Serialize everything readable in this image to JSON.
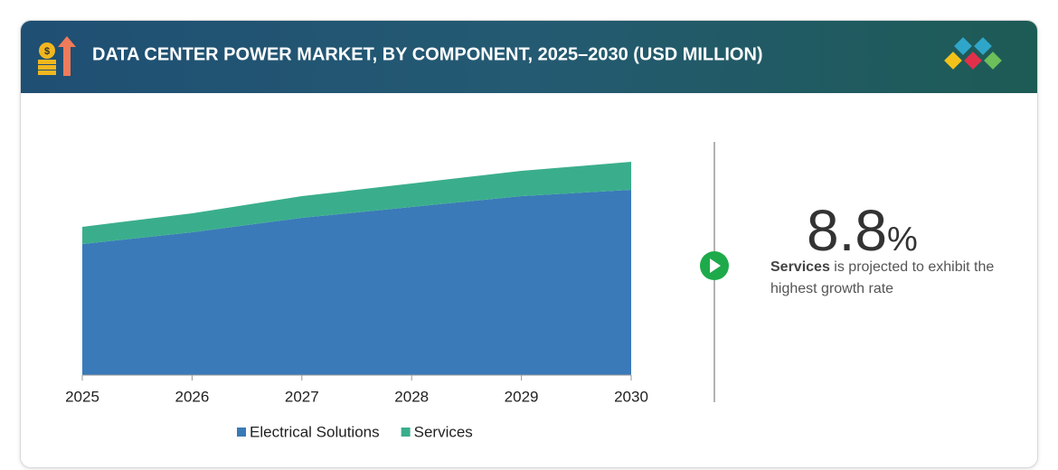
{
  "chart_data": {
    "type": "area",
    "stacked": true,
    "title": "DATA CENTER POWER MARKET, BY COMPONENT, 2025–2030 (USD MILLION)",
    "categories": [
      "2025",
      "2026",
      "2027",
      "2028",
      "2029",
      "2030"
    ],
    "series": [
      {
        "name": "Electrical Solutions",
        "color": "#3a7ab8",
        "values": [
          145,
          158,
          174,
          186,
          198,
          205
        ]
      },
      {
        "name": "Services",
        "color": "#3aae8c",
        "values": [
          19,
          21,
          24,
          26,
          28,
          31
        ]
      }
    ],
    "ylim": [
      0,
      250
    ]
  },
  "highlight": {
    "value": "8.8",
    "unit": "%",
    "lead": "Services",
    "text": "is projected to exhibit the highest growth rate"
  }
}
